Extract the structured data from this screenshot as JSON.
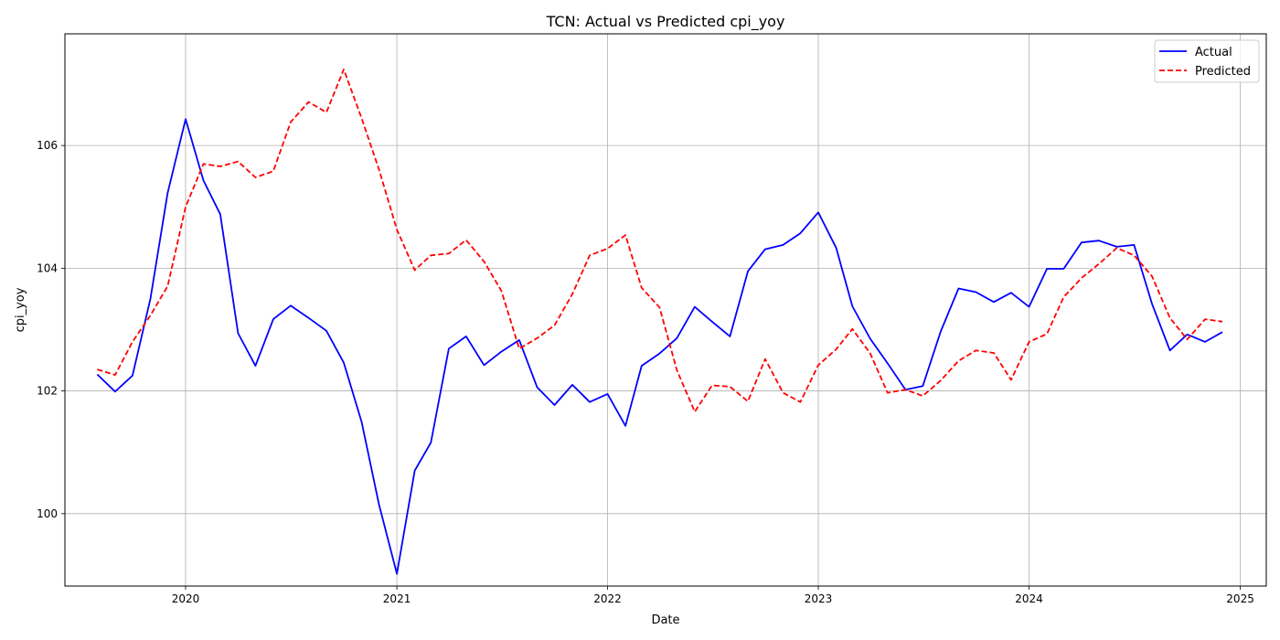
{
  "chart_data": {
    "type": "line",
    "title": "TCN: Actual vs Predicted cpi_yoy",
    "xlabel": "Date",
    "ylabel": "cpi_yoy",
    "grid": true,
    "legend_position": "top-right",
    "x_ticks": [
      "2020",
      "2021",
      "2022",
      "2023",
      "2024",
      "2025"
    ],
    "y_ticks": [
      "100",
      "102",
      "104",
      "106"
    ],
    "xlim": [
      "2019-06-06",
      "2025-02-15"
    ],
    "ylim": [
      98.82,
      107.82
    ],
    "x": [
      "2019-08",
      "2019-09",
      "2019-10",
      "2019-11",
      "2019-12",
      "2020-01",
      "2020-02",
      "2020-03",
      "2020-04",
      "2020-05",
      "2020-06",
      "2020-07",
      "2020-08",
      "2020-09",
      "2020-10",
      "2020-11",
      "2020-12",
      "2021-01",
      "2021-02",
      "2021-03",
      "2021-04",
      "2021-05",
      "2021-06",
      "2021-07",
      "2021-08",
      "2021-09",
      "2021-10",
      "2021-11",
      "2021-12",
      "2022-01",
      "2022-02",
      "2022-03",
      "2022-04",
      "2022-05",
      "2022-06",
      "2022-07",
      "2022-08",
      "2022-09",
      "2022-10",
      "2022-11",
      "2022-12",
      "2023-01",
      "2023-02",
      "2023-03",
      "2023-04",
      "2023-05",
      "2023-06",
      "2023-07",
      "2023-08",
      "2023-09",
      "2023-10",
      "2023-11",
      "2023-12",
      "2024-01",
      "2024-02",
      "2024-03",
      "2024-04",
      "2024-05",
      "2024-06",
      "2024-07",
      "2024-08",
      "2024-09",
      "2024-10",
      "2024-11",
      "2024-12"
    ],
    "series": [
      {
        "name": "Actual",
        "color": "#0000ff",
        "style": "solid",
        "values": [
          102.27,
          101.99,
          102.25,
          103.5,
          105.23,
          106.43,
          105.43,
          104.88,
          102.94,
          102.41,
          103.17,
          103.39,
          103.19,
          102.98,
          102.46,
          101.49,
          100.15,
          99.02,
          100.7,
          101.16,
          102.69,
          102.89,
          102.42,
          102.64,
          102.83,
          102.06,
          101.77,
          102.1,
          101.82,
          101.95,
          101.43,
          102.41,
          102.61,
          102.86,
          103.37,
          103.13,
          102.89,
          103.95,
          104.31,
          104.38,
          104.57,
          104.91,
          104.33,
          103.38,
          102.85,
          102.45,
          102.02,
          102.08,
          102.97,
          103.67,
          103.61,
          103.45,
          103.6,
          103.37,
          103.99,
          103.99,
          104.42,
          104.45,
          104.35,
          104.38,
          103.42,
          102.66,
          102.92,
          102.8,
          102.96
        ]
      },
      {
        "name": "Predicted",
        "color": "#ff0000",
        "style": "dashed",
        "values": [
          102.35,
          102.26,
          102.8,
          103.23,
          103.71,
          105.0,
          105.7,
          105.66,
          105.74,
          105.48,
          105.58,
          106.38,
          106.71,
          106.54,
          107.24,
          106.44,
          105.61,
          104.63,
          103.97,
          104.21,
          104.24,
          104.46,
          104.11,
          103.63,
          102.69,
          102.86,
          103.07,
          103.58,
          104.21,
          104.32,
          104.54,
          103.68,
          103.36,
          102.34,
          101.66,
          102.09,
          102.07,
          101.83,
          102.52,
          101.97,
          101.82,
          102.42,
          102.68,
          103.01,
          102.61,
          101.97,
          102.02,
          101.92,
          102.17,
          102.49,
          102.66,
          102.62,
          102.18,
          102.8,
          102.93,
          103.53,
          103.84,
          104.07,
          104.33,
          104.21,
          103.87,
          103.19,
          102.84,
          103.17,
          103.13
        ]
      }
    ]
  }
}
